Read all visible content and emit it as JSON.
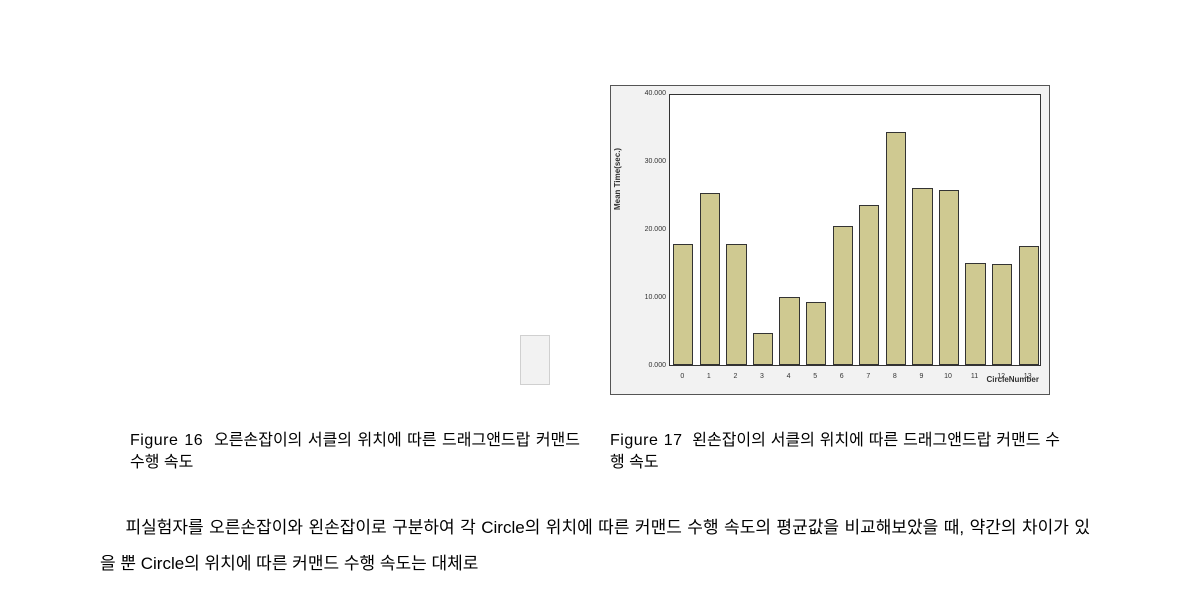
{
  "chart17": {
    "type": "bar",
    "categories": [
      "0",
      "1",
      "2",
      "3",
      "4",
      "5",
      "6",
      "7",
      "8",
      "9",
      "10",
      "11",
      "12",
      "13"
    ],
    "values": [
      17800,
      25300,
      17800,
      4700,
      10000,
      9200,
      20500,
      23500,
      34200,
      26000,
      25700,
      15000,
      14800,
      17500
    ],
    "bar_color": "#cfc991",
    "bar_border": "#333333",
    "background_color": "#f2f2f2",
    "plot_background": "#ffffff",
    "ylabel": "Mean Time(sec.)",
    "xlabel": "CircleNumber",
    "ylim": [
      0,
      40000
    ],
    "yticks": [
      0,
      10000,
      20000,
      30000,
      40000
    ],
    "ytick_labels": [
      "0.000",
      "10.000",
      "20.000",
      "30.000",
      "40.000"
    ],
    "label_fontsize": 8,
    "tick_fontsize": 7,
    "bar_width_ratio": 0.76
  },
  "caption16": {
    "label": "Figure 16",
    "text": "오른손잡이의 서클의 위치에 따른 드래그앤드랍 커맨드 수행 속도"
  },
  "caption17": {
    "label": "Figure 17",
    "text": "왼손잡이의 서클의 위치에 따른 드래그앤드랍 커맨드 수행 속도"
  },
  "body_paragraph": "피실험자를 오른손잡이와 왼손잡이로 구분하여 각 Circle의 위치에 따른 커맨드 수행 속도의 평균값을 비교해보았을 때, 약간의 차이가 있을 뿐 Circle의 위치에 따른 커맨드 수행 속도는 대체로"
}
